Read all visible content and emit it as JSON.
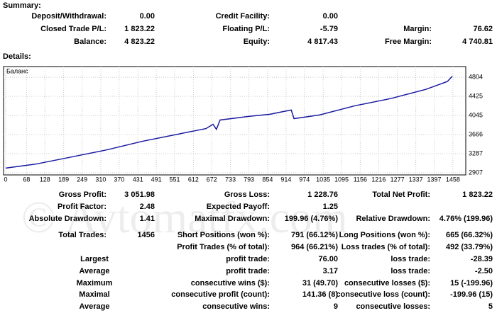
{
  "summary": {
    "title": "Summary:",
    "rows": [
      [
        "Deposit/Withdrawal:",
        "0.00",
        "Credit Facility:",
        "0.00",
        null,
        null
      ],
      [
        "Closed Trade P/L:",
        "1 823.22",
        "Floating P/L:",
        "-5.79",
        "Margin:",
        "76.62"
      ],
      [
        "Balance:",
        "4 823.22",
        "Equity:",
        "4 817.43",
        "Free Margin:",
        "4 740.81"
      ]
    ]
  },
  "details": {
    "title": "Details:",
    "rows": [
      [
        "Gross Profit:",
        "3 051.98",
        "Gross Loss:",
        "1 228.76",
        "Total Net Profit:",
        "1 823.22"
      ],
      [
        "Profit Factor:",
        "2.48",
        "Expected Payoff:",
        "1.25",
        null,
        null
      ],
      [
        "Absolute Drawdown:",
        "1.41",
        "Maximal Drawdown:",
        "199.96 (4.76%)",
        "Relative Drawdown:",
        "4.76% (199.96)"
      ],
      [
        "Total Trades:",
        "1456",
        "Short Positions (won %):",
        "791 (66.12%)",
        "Long Positions (won %):",
        "665 (66.32%)"
      ],
      [
        null,
        null,
        "Profit Trades (% of total):",
        "964 (66.21%)",
        "Loss trades (% of total):",
        "492 (33.79%)"
      ],
      [
        "Largest",
        null,
        "profit trade:",
        "76.00",
        "loss trade:",
        "-28.39"
      ],
      [
        "Average",
        null,
        "profit trade:",
        "3.17",
        "loss trade:",
        "-2.50"
      ],
      [
        "Maximum",
        null,
        "consecutive wins ($):",
        "31 (49.70)",
        "consecutive losses ($):",
        "15 (-199.96)"
      ],
      [
        "Maximal",
        null,
        "consecutive profit (count):",
        "141.36 (8)",
        "consecutive loss (count):",
        "-199.96 (15)"
      ],
      [
        "Average",
        null,
        "consecutive wins:",
        "9",
        "consecutive losses:",
        "5"
      ]
    ]
  },
  "watermark": "© Avtomatfx.com",
  "chart_data": {
    "type": "line",
    "series": [
      {
        "name": "Баланс",
        "color": "#1a1aa0",
        "x": [
          0,
          97,
          213,
          329,
          444,
          560,
          653,
          676,
          687,
          699,
          792,
          861,
          907,
          931,
          940,
          1023,
          1139,
          1255,
          1370,
          1440,
          1456
        ],
        "values": [
          3000,
          3078,
          3219,
          3361,
          3530,
          3672,
          3785,
          3870,
          3771,
          3955,
          4026,
          4068,
          4125,
          4153,
          3983,
          4054,
          4238,
          4380,
          4563,
          4719,
          4823
        ]
      }
    ],
    "xlim": [
      -7,
      1500
    ],
    "ylim": [
      2865,
      5016
    ],
    "xticks": [
      0,
      68,
      128,
      189,
      249,
      310,
      370,
      431,
      491,
      551,
      612,
      672,
      733,
      793,
      854,
      914,
      974,
      1035,
      1095,
      1156,
      1216,
      1277,
      1337,
      1397,
      1458
    ],
    "yticks": [
      2907,
      3287,
      3666,
      4045,
      4425,
      4804
    ],
    "grid": true
  }
}
